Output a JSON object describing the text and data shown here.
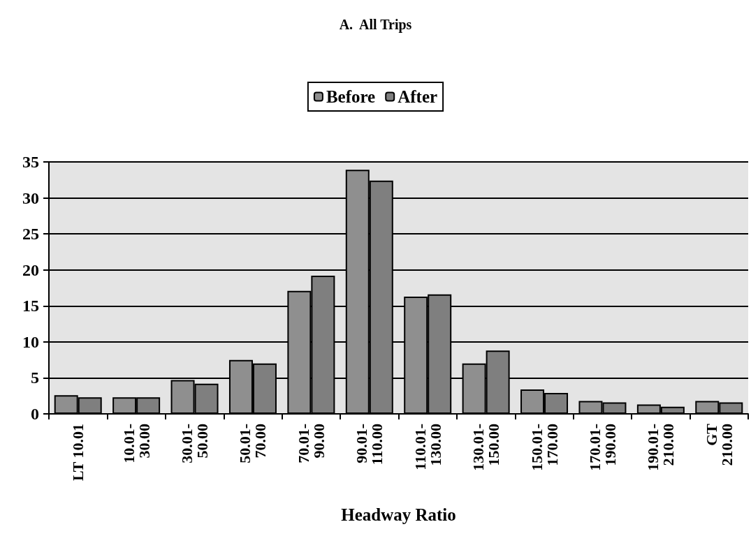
{
  "chart_data": {
    "type": "bar",
    "title": "A.  All Trips",
    "xlabel": "Headway Ratio",
    "categories": [
      "LT 10.01",
      "10.01-\n30.00",
      "30.01-\n50.00",
      "50.01-\n70.00",
      "70.01-\n90.00",
      "90.01-\n110.00",
      "110.01-\n130.00",
      "130.01-\n150.00",
      "150.01-\n170.00",
      "170.01-\n190.00",
      "190.01-\n210.00",
      "GT\n210.00"
    ],
    "series": [
      {
        "name": "Before",
        "color": "#8f8f8f",
        "values": [
          2.6,
          2.3,
          4.7,
          7.5,
          17.1,
          33.9,
          16.3,
          7.0,
          3.4,
          1.8,
          1.3,
          1.8
        ]
      },
      {
        "name": "After",
        "color": "#7f7f7f",
        "values": [
          2.3,
          2.3,
          4.2,
          7.0,
          19.2,
          32.4,
          16.6,
          8.8,
          2.9,
          1.6,
          1.0,
          1.6
        ]
      }
    ],
    "ylim": [
      0,
      35
    ],
    "yticks": [
      0,
      5,
      10,
      15,
      20,
      25,
      30,
      35
    ],
    "grid": "y",
    "legend": "top"
  }
}
